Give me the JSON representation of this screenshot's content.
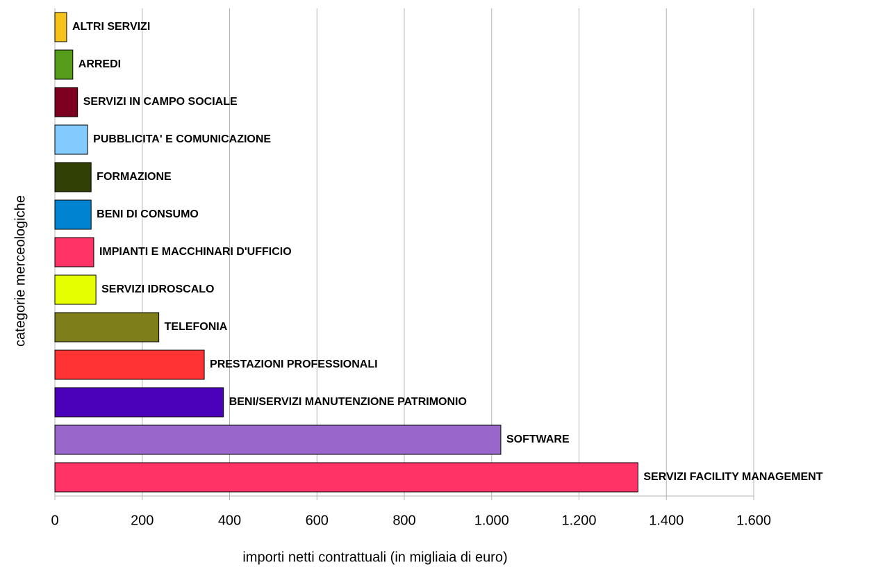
{
  "chart_data": {
    "type": "hbar",
    "xlabel": "importi netti contrattuali (in migliaia di euro)",
    "ylabel": "categorie merceologiche",
    "categories": [
      "ALTRI SERVIZI",
      "ARREDI",
      "SERVIZI IN CAMPO SOCIALE",
      "PUBBLICITA' E COMUNICAZIONE",
      "FORMAZIONE",
      "BENI DI CONSUMO",
      "IMPIANTI E MACCHINARI D'UFFICIO",
      "SERVIZI IDROSCALO",
      "TELEFONIA",
      "PRESTAZIONI PROFESSIONALI",
      "BENI/SERVIZI  MANUTENZIONE PATRIMONIO",
      "SOFTWARE",
      "SERVIZI FACILITY MANAGEMENT"
    ],
    "values": [
      27,
      41,
      52,
      75,
      83,
      83,
      89,
      94,
      238,
      342,
      386,
      1021,
      1335
    ],
    "colors": [
      "#f5c21b",
      "#579d1c",
      "#7e0021",
      "#83caff",
      "#314004",
      "#0084d1",
      "#ff3366",
      "#e6ff00",
      "#7e7e1b",
      "#ff3333",
      "#4b00b9",
      "#9966cc",
      "#ff3366"
    ],
    "xlim": [
      0,
      1600
    ],
    "xticks": [
      0,
      200,
      400,
      600,
      800,
      {
        "value": 1000,
        "label": "1.000"
      },
      {
        "value": 1200,
        "label": "1.200"
      },
      {
        "value": 1400,
        "label": "1.400"
      },
      {
        "value": 1600,
        "label": "1.600"
      }
    ],
    "grid": true
  }
}
